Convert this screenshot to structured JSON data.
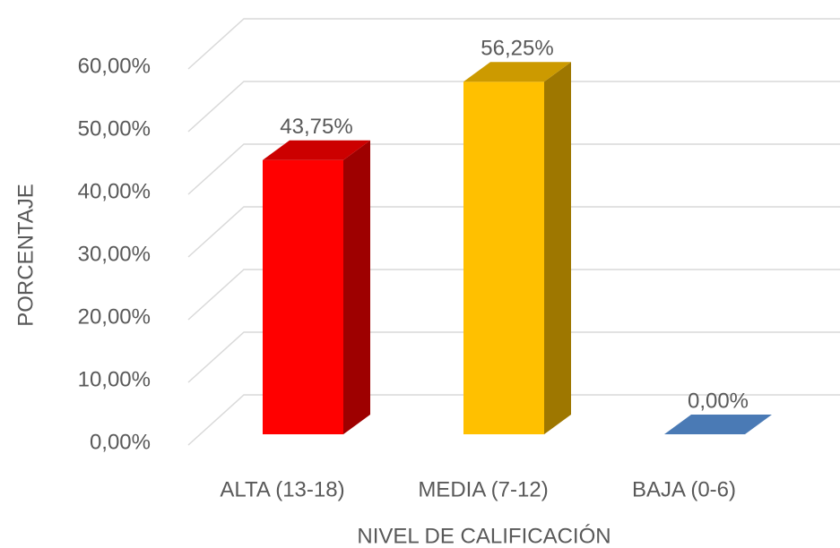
{
  "chart_data": {
    "type": "bar3d",
    "x_label": "NIVEL DE CALIFICACIÓN",
    "y_label": "PORCENTAJE",
    "categories": [
      "ALTA (13-18)",
      "MEDIA (7-12)",
      "BAJA (0-6)"
    ],
    "values": [
      43.75,
      56.25,
      0
    ],
    "value_labels": [
      "43,75%",
      "56,25%",
      "0,00%"
    ],
    "colors": [
      "#ff0000",
      "#ffc000",
      "#4a7ab5"
    ],
    "ylim": [
      0,
      60
    ],
    "yticks": [
      {
        "value": 0,
        "label": "0,00%"
      },
      {
        "value": 10,
        "label": "10,00%"
      },
      {
        "value": 20,
        "label": "20,00%"
      },
      {
        "value": 30,
        "label": "30,00%"
      },
      {
        "value": 40,
        "label": "40,00%"
      },
      {
        "value": 50,
        "label": "50,00%"
      },
      {
        "value": 60,
        "label": "60,00%"
      }
    ],
    "grid": true
  }
}
